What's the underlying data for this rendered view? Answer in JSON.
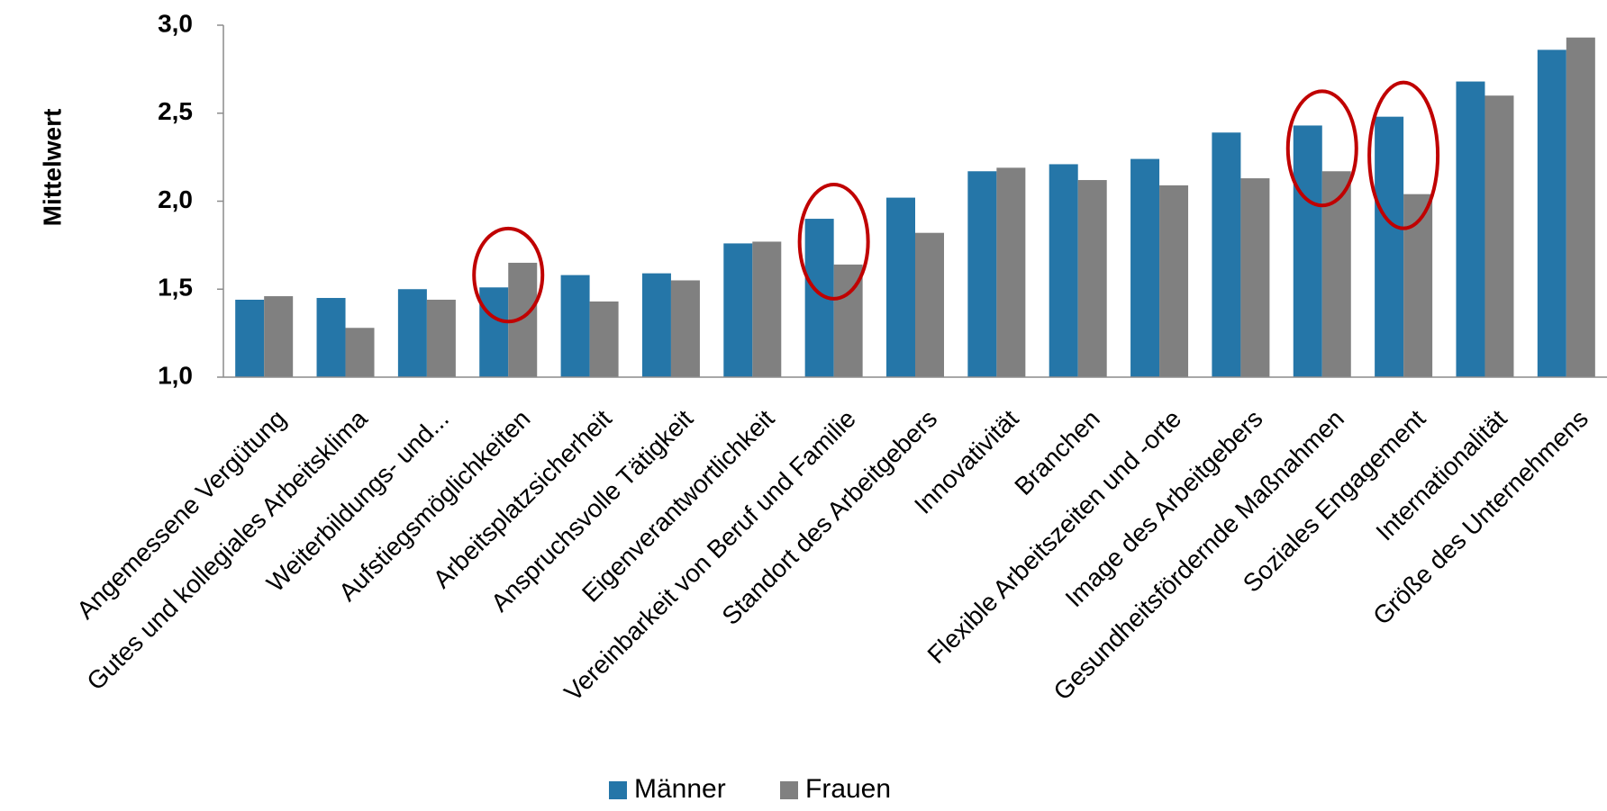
{
  "chart_data": {
    "type": "bar",
    "title": "",
    "xlabel": "",
    "ylabel": "Mittelwert",
    "ylim": [
      1.0,
      3.0
    ],
    "yticks": [
      "1,0",
      "1,5",
      "2,0",
      "2,5",
      "3,0"
    ],
    "ytick_values": [
      1.0,
      1.5,
      2.0,
      2.5,
      3.0
    ],
    "grid": false,
    "legend_position": "bottom",
    "categories": [
      "Angemessene Vergütung",
      "Gutes und kollegiales Arbeitsklima",
      "Weiterbildungs- und...",
      "Aufstiegsmöglichkeiten",
      "Arbeitsplatzsicherheit",
      "Anspruchsvolle Tätigkeit",
      "Eigenverantwortlichkeit",
      "Vereinbarkeit von Beruf und Familie",
      "Standort des Arbeitgebers",
      "Innovativität",
      "Branchen",
      "Flexible Arbeitszeiten und -orte",
      "Image des Arbeitgebers",
      "Gesundheitsfördernde Maßnahmen",
      "Soziales Engagement",
      "Internationalität",
      "Größe des Unternehmens"
    ],
    "series": [
      {
        "name": "Männer",
        "color": "#2576a8",
        "values": [
          1.44,
          1.45,
          1.5,
          1.51,
          1.58,
          1.59,
          1.76,
          1.9,
          2.02,
          2.17,
          2.21,
          2.24,
          2.39,
          2.43,
          2.48,
          2.68,
          2.86
        ]
      },
      {
        "name": "Frauen",
        "color": "#808080",
        "values": [
          1.46,
          1.28,
          1.44,
          1.65,
          1.43,
          1.55,
          1.77,
          1.64,
          1.82,
          2.19,
          2.12,
          2.09,
          2.13,
          2.17,
          2.04,
          2.6,
          2.93
        ]
      }
    ],
    "highlighted_categories": [
      3,
      7,
      13,
      14
    ],
    "highlight_color": "#c00000"
  }
}
